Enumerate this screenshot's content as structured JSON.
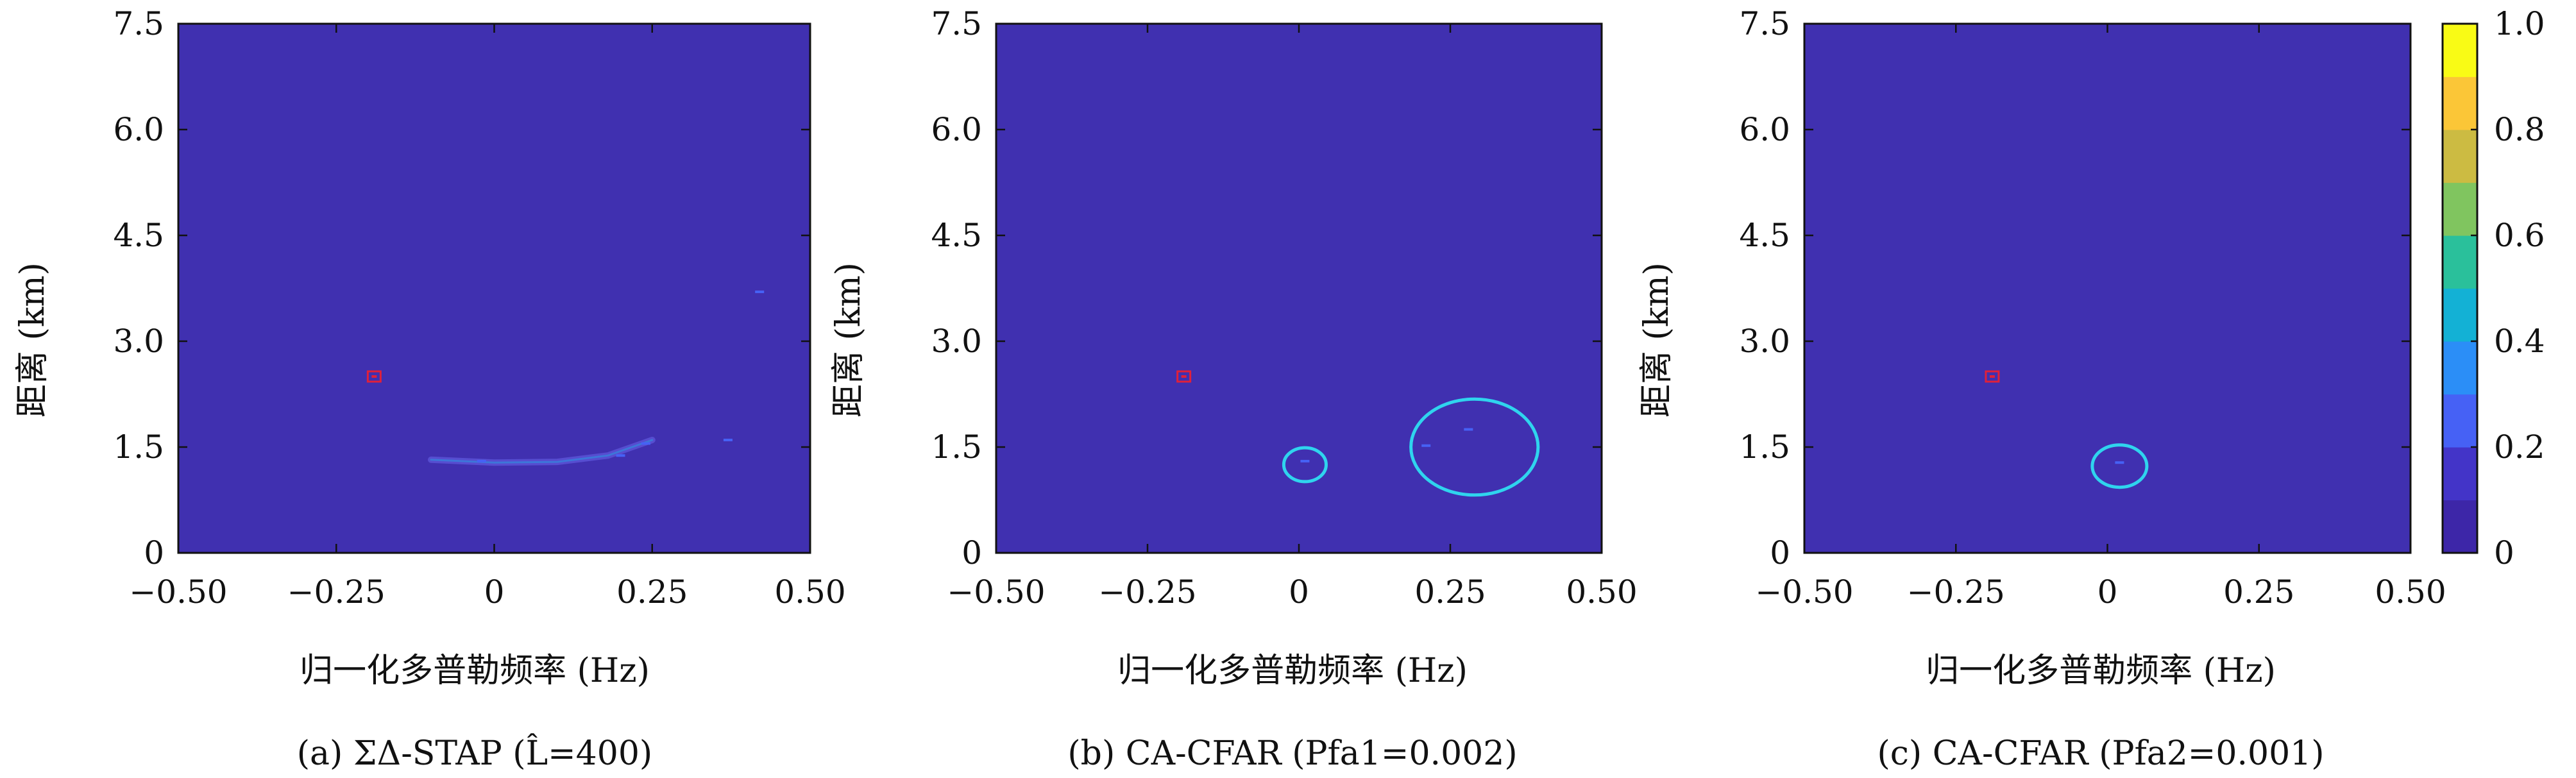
{
  "colors": {
    "background": "#4030b0",
    "frame": "#111111",
    "red_marker": "#e0203a",
    "cyan_circle": "#2fd4ee",
    "colormap": [
      "#3d26a8",
      "#4334c8",
      "#4661f5",
      "#2b8ef7",
      "#13b1d5",
      "#2ac09b",
      "#80c55f",
      "#ccbb42",
      "#fbc637",
      "#f9fb15"
    ]
  },
  "colorbar": {
    "range": [
      0,
      1
    ],
    "ticks": [
      "1.0",
      "0.8",
      "0.6",
      "0.4",
      "0.2",
      "0"
    ]
  },
  "chart_data": [
    {
      "type": "heatmap",
      "caption": "(a) ΣΔ-STAP (L̂=400)",
      "xlabel": "归一化多普勒频率 (Hz)",
      "ylabel": "距离 (km)",
      "xlim": [
        -0.5,
        0.5
      ],
      "ylim": [
        0,
        7.5
      ],
      "xticks": [
        "−0.50",
        "−0.25",
        "0",
        "0.25",
        "0.50"
      ],
      "yticks": [
        "7.5",
        "6.0",
        "4.5",
        "3.0",
        "1.5",
        "0"
      ],
      "background_value": 0,
      "red_markers": [
        {
          "x": -0.19,
          "y": 2.5
        }
      ],
      "clutter_arc": [
        [
          -0.1,
          1.32
        ],
        [
          0.0,
          1.28
        ],
        [
          0.1,
          1.29
        ],
        [
          0.18,
          1.38
        ],
        [
          0.25,
          1.6
        ]
      ],
      "streaks": [
        {
          "x": -0.02,
          "y": 1.3,
          "value": 0.1
        },
        {
          "x": 0.2,
          "y": 1.38,
          "value": 0.1
        },
        {
          "x": 0.24,
          "y": 1.55,
          "value": 0.1
        },
        {
          "x": 0.37,
          "y": 1.6,
          "value": 0.1
        },
        {
          "x": 0.42,
          "y": 3.7,
          "value": 0.1
        }
      ],
      "circles": []
    },
    {
      "type": "heatmap",
      "caption": "(b) CA-CFAR (Pfa1=0.002)",
      "xlabel": "归一化多普勒频率 (Hz)",
      "ylabel": "距离 (km)",
      "xlim": [
        -0.5,
        0.5
      ],
      "ylim": [
        0,
        7.5
      ],
      "xticks": [
        "−0.50",
        "−0.25",
        "0",
        "0.25",
        "0.50"
      ],
      "yticks": [
        "7.5",
        "6.0",
        "4.5",
        "3.0",
        "1.5",
        "0"
      ],
      "background_value": 0,
      "red_markers": [
        {
          "x": -0.19,
          "y": 2.5
        }
      ],
      "clutter_arc": [],
      "streaks": [
        {
          "x": 0.01,
          "y": 1.3,
          "value": 0.1
        },
        {
          "x": 0.21,
          "y": 1.52,
          "value": 0.1
        },
        {
          "x": 0.28,
          "y": 1.75,
          "value": 0.1
        }
      ],
      "circles": [
        {
          "cx": 0.01,
          "cy": 1.25,
          "rx": 0.035,
          "ry": 0.24
        },
        {
          "cx": 0.29,
          "cy": 1.5,
          "rx": 0.105,
          "ry": 0.68
        }
      ]
    },
    {
      "type": "heatmap",
      "caption": "(c) CA-CFAR (Pfa2=0.001)",
      "xlabel": "归一化多普勒频率 (Hz)",
      "ylabel": "距离 (km)",
      "xlim": [
        -0.5,
        0.5
      ],
      "ylim": [
        0,
        7.5
      ],
      "xticks": [
        "−0.50",
        "−0.25",
        "0",
        "0.25",
        "0.50"
      ],
      "yticks": [
        "7.5",
        "6.0",
        "4.5",
        "3.0",
        "1.5",
        "0"
      ],
      "background_value": 0,
      "red_markers": [
        {
          "x": -0.19,
          "y": 2.5
        }
      ],
      "clutter_arc": [],
      "streaks": [
        {
          "x": 0.02,
          "y": 1.28,
          "value": 0.1
        }
      ],
      "circles": [
        {
          "cx": 0.02,
          "cy": 1.23,
          "rx": 0.045,
          "ry": 0.3
        }
      ]
    }
  ]
}
